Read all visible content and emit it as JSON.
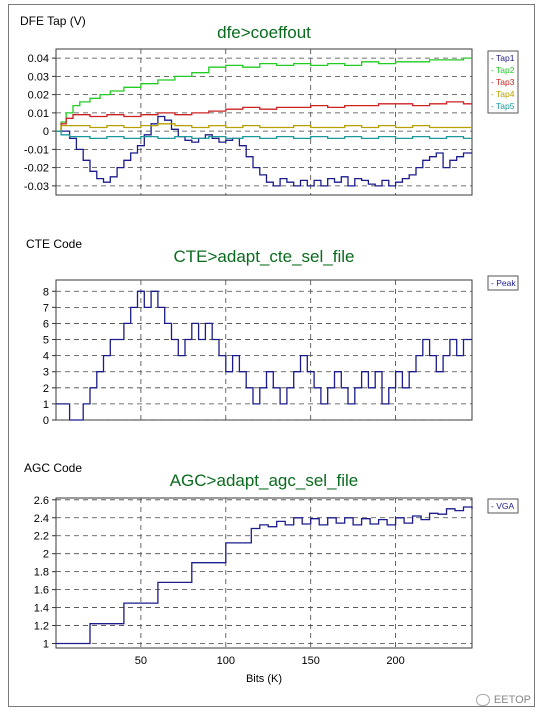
{
  "chart_data": [
    {
      "type": "line",
      "title": "dfe>coeffout",
      "ylabel": "DFE Tap (V)",
      "xlabel": "",
      "xlim": [
        0,
        245
      ],
      "ylim": [
        -0.035,
        0.045
      ],
      "yticks": [
        0.04,
        0.03,
        0.02,
        0.01,
        0,
        -0.01,
        -0.02,
        -0.03
      ],
      "yticklabels": [
        "0.04",
        "0.03",
        "0.02",
        "0.01",
        "0",
        "-0.01",
        "-0.02",
        "-0.03"
      ],
      "xticks": [
        50,
        100,
        150,
        200
      ],
      "xticklabels": [],
      "grid": true,
      "legend": "right",
      "series": [
        {
          "name": "Tap1",
          "color": "#1c1c8c",
          "x": [
            0,
            3,
            8,
            12,
            16,
            20,
            24,
            28,
            32,
            36,
            40,
            44,
            48,
            52,
            56,
            60,
            64,
            68,
            72,
            76,
            80,
            84,
            88,
            92,
            96,
            100,
            104,
            108,
            112,
            116,
            120,
            124,
            128,
            132,
            136,
            140,
            144,
            148,
            152,
            156,
            160,
            164,
            168,
            172,
            176,
            180,
            184,
            188,
            192,
            196,
            200,
            204,
            208,
            212,
            216,
            220,
            224,
            228,
            232,
            236,
            240,
            245
          ],
          "values": [
            0,
            0,
            -0.004,
            -0.01,
            -0.016,
            -0.022,
            -0.026,
            -0.028,
            -0.025,
            -0.02,
            -0.016,
            -0.012,
            -0.008,
            -0.002,
            0.004,
            0.008,
            0.006,
            0.001,
            -0.003,
            -0.005,
            -0.006,
            -0.004,
            -0.002,
            -0.004,
            -0.006,
            -0.005,
            -0.004,
            -0.008,
            -0.014,
            -0.02,
            -0.024,
            -0.028,
            -0.03,
            -0.026,
            -0.028,
            -0.03,
            -0.027,
            -0.03,
            -0.027,
            -0.03,
            -0.026,
            -0.028,
            -0.025,
            -0.03,
            -0.026,
            -0.027,
            -0.029,
            -0.03,
            -0.027,
            -0.03,
            -0.028,
            -0.026,
            -0.024,
            -0.02,
            -0.016,
            -0.014,
            -0.012,
            -0.02,
            -0.016,
            -0.014,
            -0.012,
            -0.012
          ]
        },
        {
          "name": "Tap2",
          "color": "#22cc22",
          "x": [
            0,
            3,
            6,
            10,
            14,
            20,
            26,
            32,
            40,
            50,
            60,
            70,
            80,
            90,
            100,
            110,
            120,
            130,
            140,
            150,
            160,
            170,
            180,
            190,
            200,
            210,
            220,
            230,
            240,
            245
          ],
          "values": [
            0,
            0.005,
            0.01,
            0.014,
            0.016,
            0.018,
            0.02,
            0.022,
            0.024,
            0.026,
            0.028,
            0.03,
            0.032,
            0.035,
            0.036,
            0.035,
            0.037,
            0.036,
            0.037,
            0.036,
            0.037,
            0.036,
            0.038,
            0.037,
            0.038,
            0.038,
            0.039,
            0.039,
            0.04,
            0.04
          ]
        },
        {
          "name": "Tap3",
          "color": "#cc2222",
          "x": [
            0,
            3,
            6,
            10,
            20,
            30,
            40,
            50,
            60,
            70,
            80,
            90,
            100,
            110,
            120,
            130,
            140,
            150,
            160,
            170,
            180,
            190,
            200,
            210,
            220,
            230,
            240,
            245
          ],
          "values": [
            0,
            0.004,
            0.007,
            0.009,
            0.008,
            0.009,
            0.008,
            0.009,
            0.01,
            0.009,
            0.01,
            0.011,
            0.012,
            0.013,
            0.012,
            0.013,
            0.013,
            0.014,
            0.013,
            0.014,
            0.014,
            0.015,
            0.015,
            0.014,
            0.015,
            0.016,
            0.015,
            0.015
          ]
        },
        {
          "name": "Tap4",
          "color": "#b8a000",
          "x": [
            0,
            3,
            8,
            20,
            30,
            40,
            50,
            60,
            70,
            80,
            90,
            100,
            110,
            120,
            130,
            140,
            150,
            160,
            170,
            180,
            190,
            200,
            210,
            220,
            230,
            240,
            245
          ],
          "values": [
            0,
            0.003,
            0.003,
            0.002,
            0.003,
            0.002,
            0.003,
            0.004,
            0.003,
            0.002,
            0.003,
            0.002,
            0.003,
            0.002,
            0.002,
            0.003,
            0.002,
            0.002,
            0.003,
            0.002,
            0.003,
            0.002,
            0.003,
            0.002,
            0.002,
            0.002,
            0.002
          ]
        },
        {
          "name": "Tap5",
          "color": "#1a9a9a",
          "x": [
            0,
            3,
            8,
            20,
            30,
            40,
            50,
            60,
            70,
            80,
            90,
            100,
            110,
            120,
            130,
            140,
            150,
            160,
            170,
            180,
            190,
            200,
            210,
            220,
            230,
            240,
            245
          ],
          "values": [
            0,
            -0.002,
            -0.003,
            -0.004,
            -0.003,
            -0.004,
            -0.003,
            -0.004,
            -0.003,
            -0.004,
            -0.003,
            -0.004,
            -0.003,
            -0.004,
            -0.003,
            -0.004,
            -0.003,
            -0.004,
            -0.003,
            -0.004,
            -0.003,
            -0.004,
            -0.003,
            -0.004,
            -0.003,
            -0.004,
            -0.004
          ]
        }
      ]
    },
    {
      "type": "line",
      "title": "CTE>adapt_cte_sel_file",
      "ylabel": "CTE Code",
      "xlabel": "",
      "xlim": [
        0,
        245
      ],
      "ylim": [
        0,
        8.7
      ],
      "yticks": [
        8,
        7,
        6,
        5,
        4,
        3,
        2,
        1,
        0
      ],
      "yticklabels": [
        "8",
        "7",
        "6",
        "5",
        "4",
        "3",
        "2",
        "1",
        "0"
      ],
      "xticks": [
        50,
        100,
        150,
        200
      ],
      "xticklabels": [],
      "grid": true,
      "legend": "right",
      "series": [
        {
          "name": "Peak",
          "color": "#1c1c8c",
          "x": [
            0,
            8,
            12,
            16,
            20,
            24,
            28,
            32,
            36,
            40,
            44,
            48,
            52,
            56,
            60,
            64,
            68,
            72,
            76,
            80,
            84,
            88,
            92,
            96,
            100,
            104,
            108,
            112,
            116,
            120,
            124,
            128,
            132,
            136,
            140,
            144,
            148,
            152,
            156,
            160,
            164,
            168,
            172,
            176,
            180,
            184,
            188,
            192,
            196,
            200,
            204,
            208,
            212,
            216,
            220,
            224,
            228,
            232,
            236,
            240,
            245
          ],
          "values": [
            1,
            0,
            0,
            1,
            2,
            3,
            4,
            5,
            5,
            6,
            7,
            8,
            7,
            8,
            7,
            6,
            5,
            4,
            5,
            6,
            5,
            6,
            5,
            4,
            3,
            4,
            3,
            2,
            1,
            2,
            3,
            2,
            1,
            2,
            3,
            4,
            3,
            2,
            1,
            2,
            3,
            2,
            1,
            2,
            3,
            2,
            3,
            1,
            2,
            3,
            2,
            3,
            4,
            5,
            4,
            3,
            4,
            5,
            4,
            5,
            5
          ]
        }
      ]
    },
    {
      "type": "line",
      "title": "AGC>adapt_agc_sel_file",
      "ylabel": "AGC Code",
      "xlabel": "Bits (K)",
      "xlim": [
        0,
        245
      ],
      "ylim": [
        0.95,
        2.62
      ],
      "yticks": [
        2.6,
        2.4,
        2.2,
        2,
        1.8,
        1.6,
        1.4,
        1.2,
        1
      ],
      "yticklabels": [
        "2.6",
        "2.4",
        "2.2",
        "2",
        "1.8",
        "1.6",
        "1.4",
        "1.2",
        "1"
      ],
      "xticks": [
        50,
        100,
        150,
        200
      ],
      "xticklabels": [
        "50",
        "100",
        "150",
        "200"
      ],
      "grid": true,
      "legend": "right",
      "series": [
        {
          "name": "VGA",
          "color": "#1c1c8c",
          "x": [
            0,
            20,
            40,
            60,
            80,
            100,
            115,
            120,
            125,
            130,
            135,
            140,
            145,
            150,
            155,
            160,
            165,
            170,
            175,
            180,
            185,
            190,
            195,
            200,
            205,
            210,
            215,
            220,
            225,
            230,
            235,
            240,
            245
          ],
          "values": [
            1.0,
            1.22,
            1.45,
            1.68,
            1.9,
            2.12,
            2.28,
            2.32,
            2.3,
            2.36,
            2.32,
            2.4,
            2.33,
            2.39,
            2.32,
            2.4,
            2.34,
            2.4,
            2.32,
            2.39,
            2.33,
            2.38,
            2.32,
            2.4,
            2.34,
            2.42,
            2.38,
            2.45,
            2.44,
            2.5,
            2.48,
            2.52,
            2.5
          ]
        }
      ]
    }
  ],
  "watermark": {
    "text": "EETOP"
  }
}
